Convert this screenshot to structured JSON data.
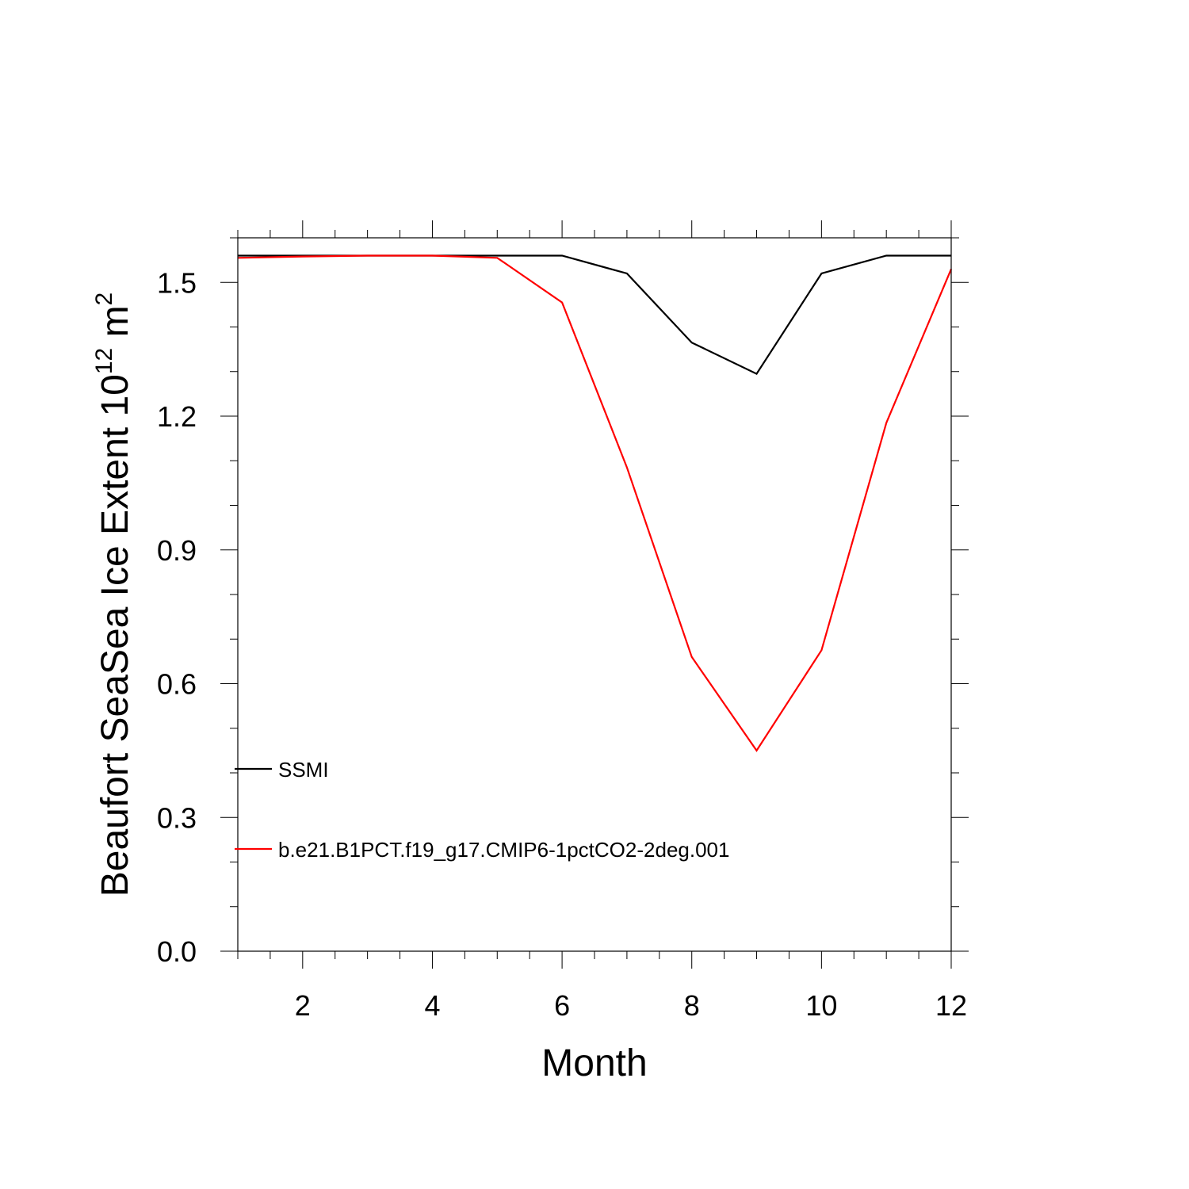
{
  "chart_data": {
    "type": "line",
    "title": "",
    "xlabel": "Month",
    "ylabel_main": "Beaufort SeaSea Ice Extent 10",
    "ylabel_exp": "12",
    "ylabel_unit": " m",
    "ylabel_unit_exp": "2",
    "xlim": [
      1,
      12
    ],
    "ylim": [
      0,
      1.6
    ],
    "x_ticks_major": [
      2,
      4,
      6,
      8,
      10,
      12
    ],
    "x_tick_labels": [
      "2",
      "4",
      "6",
      "8",
      "10",
      "12"
    ],
    "y_ticks_major": [
      0,
      0.3,
      0.6,
      0.9,
      1.2,
      1.5
    ],
    "y_tick_labels": [
      "0.0",
      "0.3",
      "0.6",
      "0.9",
      "1.2",
      "1.5"
    ],
    "x": [
      1,
      2,
      3,
      4,
      5,
      6,
      7,
      8,
      9,
      10,
      11,
      12
    ],
    "series": [
      {
        "name": "SSMI",
        "color": "#000000",
        "values": [
          1.56,
          1.56,
          1.56,
          1.56,
          1.56,
          1.56,
          1.52,
          1.365,
          1.295,
          1.52,
          1.56,
          1.56
        ]
      },
      {
        "name": "b.e21.B1PCT.f19_g17.CMIP6-1pctCO2-2deg.001",
        "color": "#ff0000",
        "values": [
          1.555,
          1.558,
          1.56,
          1.56,
          1.555,
          1.455,
          1.085,
          0.66,
          0.45,
          0.675,
          1.185,
          1.53
        ]
      }
    ],
    "legend_position": "lower-left inside"
  }
}
